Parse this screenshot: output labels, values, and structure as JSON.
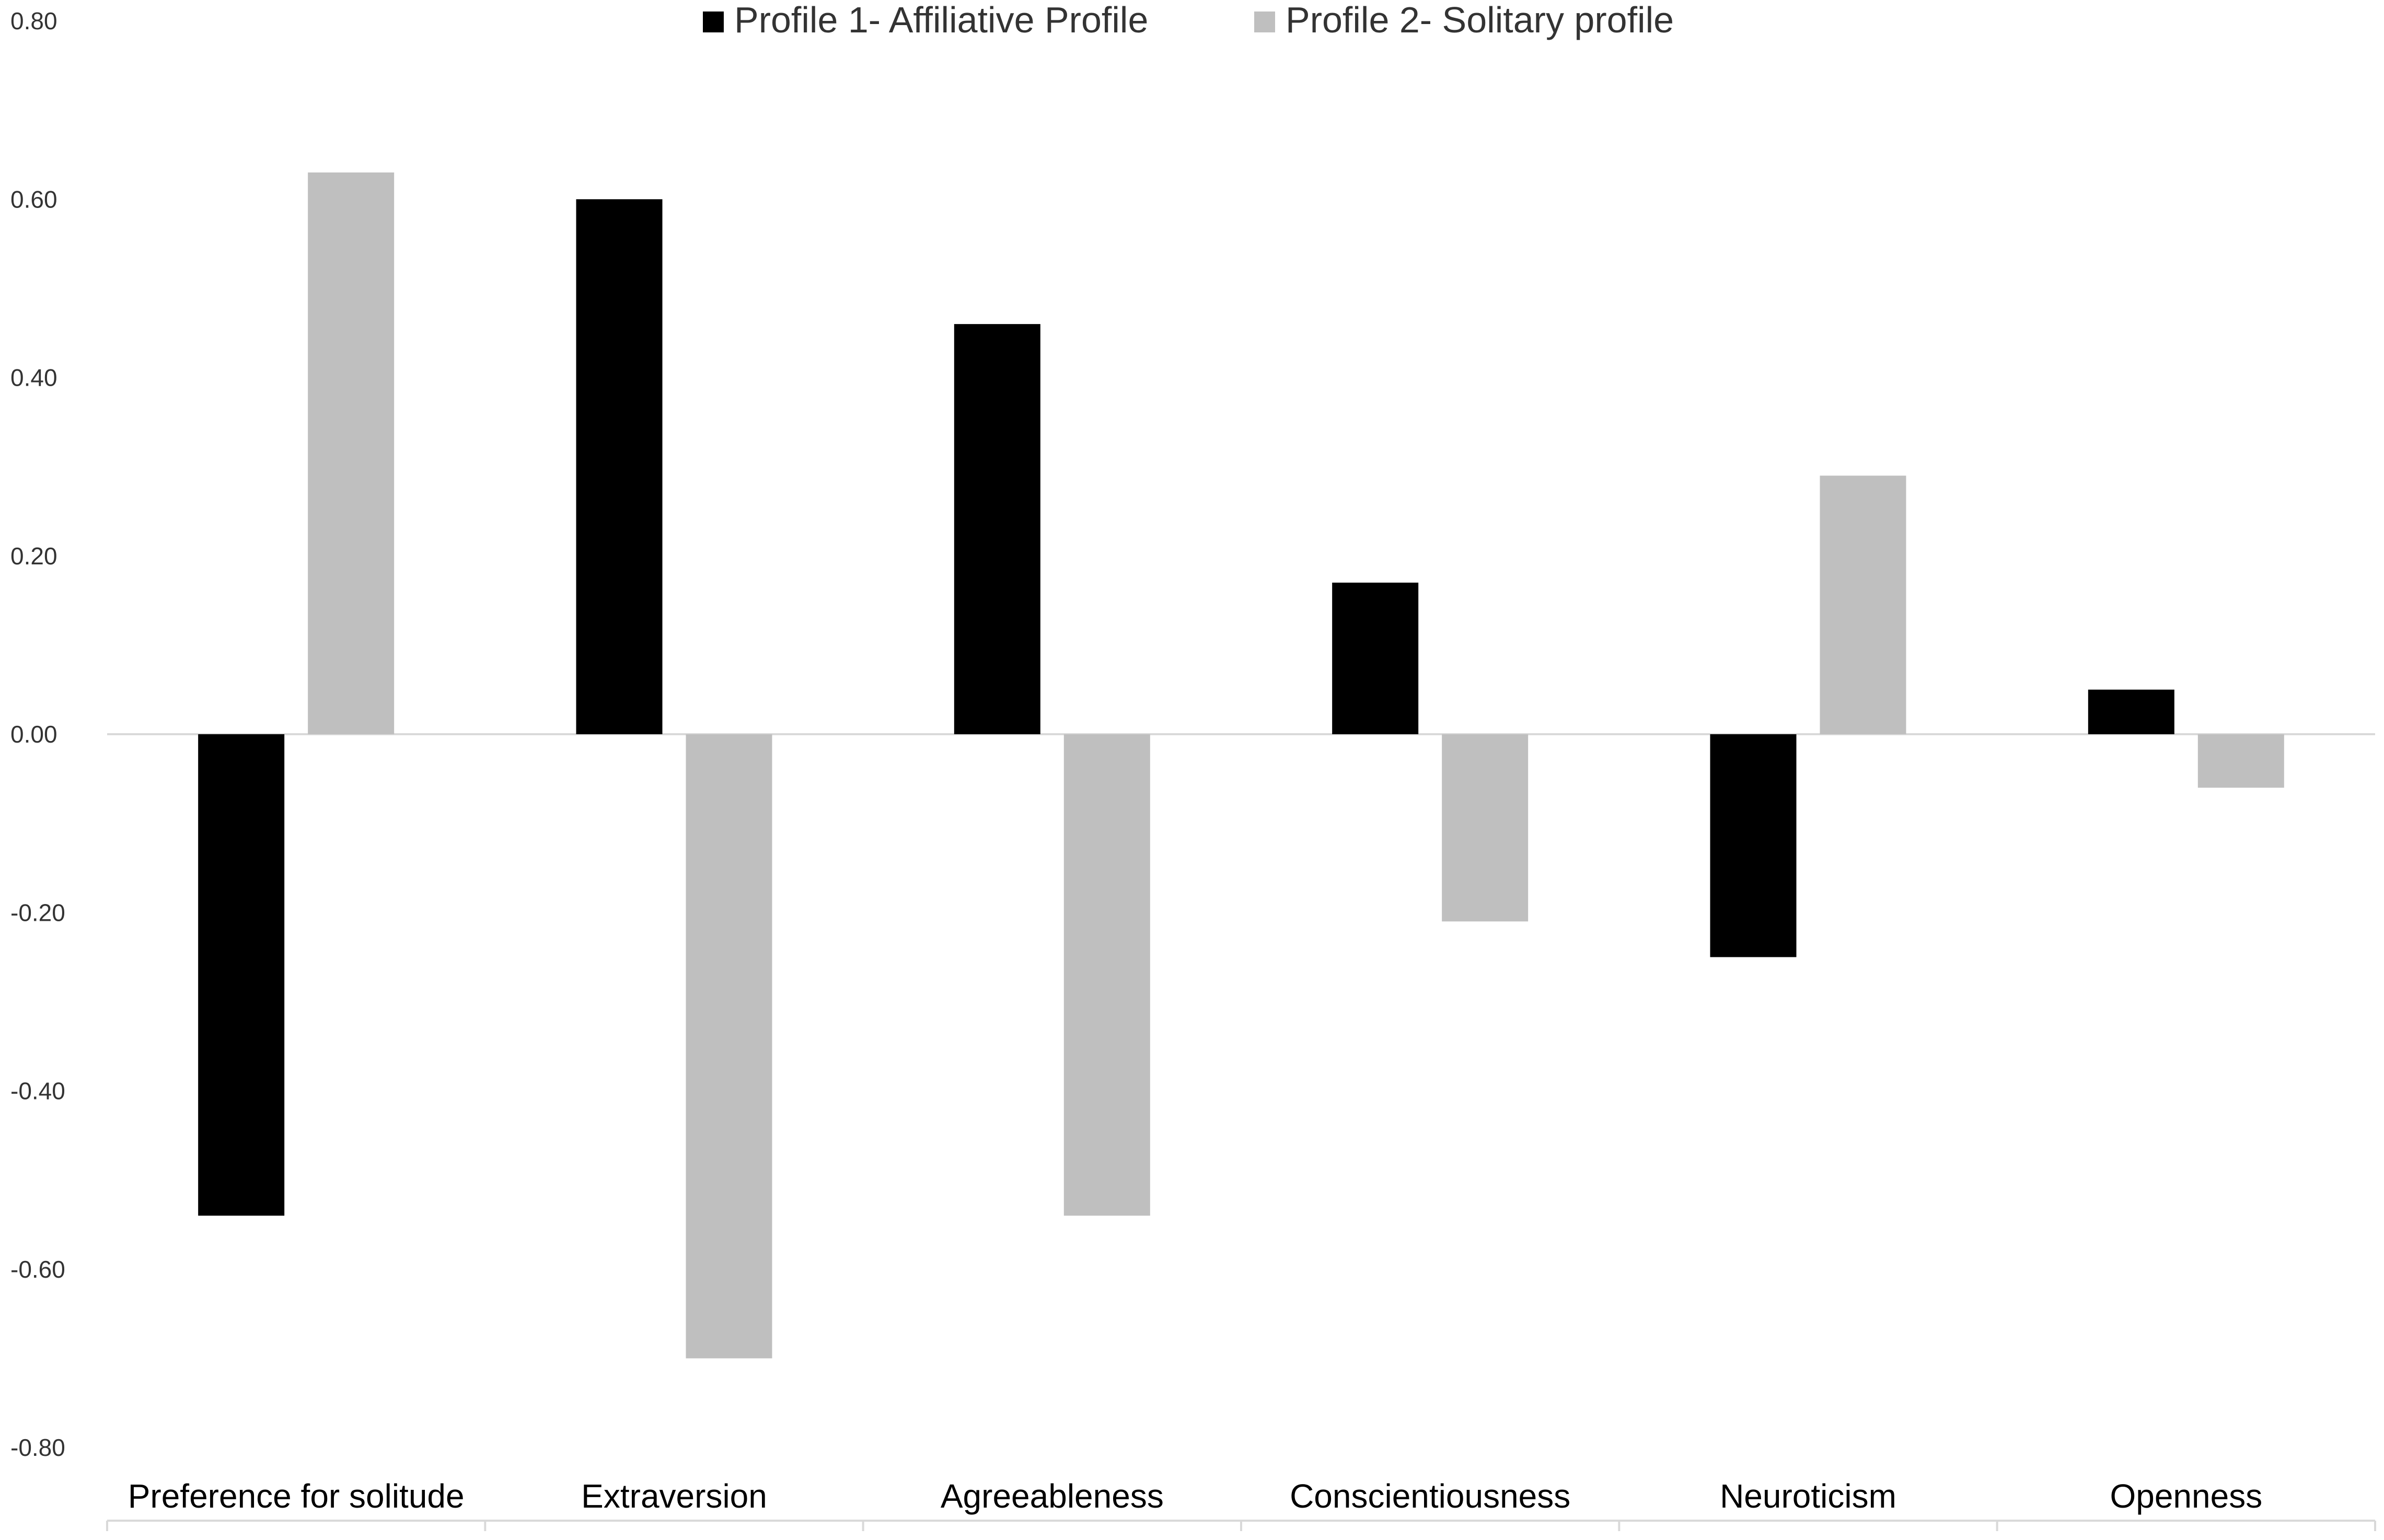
{
  "chart_data": {
    "type": "bar",
    "categories": [
      "Preference for solitude",
      "Extraversion",
      "Agreeableness",
      "Conscientiousness",
      "Neuroticism",
      "Openness"
    ],
    "series": [
      {
        "name": "Profile 1- Affiliative Profile",
        "color": "#000000",
        "values": [
          -0.54,
          0.6,
          0.46,
          0.17,
          -0.25,
          0.05
        ]
      },
      {
        "name": "Profile 2- Solitary profile",
        "color": "#bfbfbf",
        "values": [
          0.63,
          -0.7,
          -0.54,
          -0.21,
          0.29,
          -0.06
        ]
      }
    ],
    "ylim": [
      -0.8,
      0.8
    ],
    "yticks": [
      "0.80",
      "0.60",
      "0.40",
      "0.20",
      "0.00",
      "-0.20",
      "-0.40",
      "-0.60",
      "-0.80"
    ],
    "ytick_values": [
      0.8,
      0.6,
      0.4,
      0.2,
      0.0,
      -0.2,
      -0.4,
      -0.6,
      -0.8
    ],
    "title": "",
    "xlabel": "",
    "ylabel": "",
    "grid": false,
    "legend_position": "top-center"
  }
}
